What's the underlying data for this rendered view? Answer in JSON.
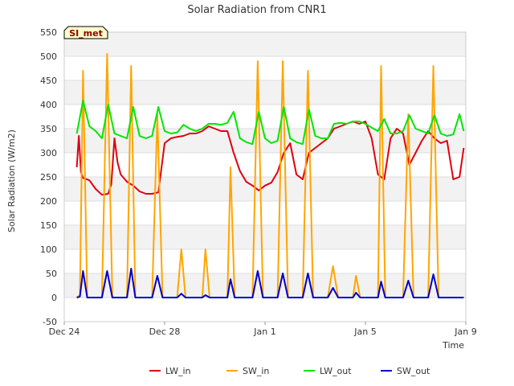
{
  "chart_data": {
    "type": "line",
    "title": "Solar Radiation from CNR1",
    "xlabel": "Time",
    "ylabel": "Solar Radiation (W/m2)",
    "badge": "SI_met",
    "ylim": [
      -50,
      550
    ],
    "yticks": [
      -50,
      0,
      50,
      100,
      150,
      200,
      250,
      300,
      350,
      400,
      450,
      500,
      550
    ],
    "xlim": [
      "2022-12-24",
      "2023-01-09"
    ],
    "xticks": [
      {
        "date": "2022-12-24",
        "label": "Dec 24"
      },
      {
        "date": "2022-12-28",
        "label": "Dec 28"
      },
      {
        "date": "2023-01-01",
        "label": "Jan 1"
      },
      {
        "date": "2023-01-05",
        "label": "Jan 5"
      },
      {
        "date": "2023-01-09",
        "label": "Jan 9"
      }
    ],
    "grid": true,
    "legend_position": "bottom",
    "series": [
      {
        "name": "LW_in",
        "color": "#e0000f",
        "x": [
          "2022-12-24 12:00",
          "2022-12-24 14:00",
          "2022-12-24 16:00",
          "2022-12-24 18:00",
          "2022-12-25 00:00",
          "2022-12-25 06:00",
          "2022-12-25 12:00",
          "2022-12-25 18:00",
          "2022-12-25 21:00",
          "2022-12-26 00:00",
          "2022-12-26 03:00",
          "2022-12-26 06:00",
          "2022-12-26 12:00",
          "2022-12-26 18:00",
          "2022-12-27 00:00",
          "2022-12-27 06:00",
          "2022-12-27 12:00",
          "2022-12-27 18:00",
          "2022-12-28 00:00",
          "2022-12-28 06:00",
          "2022-12-28 12:00",
          "2022-12-28 18:00",
          "2022-12-29 00:00",
          "2022-12-29 06:00",
          "2022-12-29 12:00",
          "2022-12-29 18:00",
          "2022-12-30 00:00",
          "2022-12-30 06:00",
          "2022-12-30 12:00",
          "2022-12-30 18:00",
          "2022-12-31 00:00",
          "2022-12-31 06:00",
          "2022-12-31 12:00",
          "2022-12-31 18:00",
          "2023-01-01 00:00",
          "2023-01-01 06:00",
          "2023-01-01 12:00",
          "2023-01-01 18:00",
          "2023-01-02 00:00",
          "2023-01-02 06:00",
          "2023-01-02 12:00",
          "2023-01-02 18:00",
          "2023-01-03 00:00",
          "2023-01-03 06:00",
          "2023-01-03 12:00",
          "2023-01-03 18:00",
          "2023-01-04 00:00",
          "2023-01-04 06:00",
          "2023-01-04 12:00",
          "2023-01-04 18:00",
          "2023-01-05 00:00",
          "2023-01-05 06:00",
          "2023-01-05 12:00",
          "2023-01-05 18:00",
          "2023-01-06 00:00",
          "2023-01-06 06:00",
          "2023-01-06 12:00",
          "2023-01-06 18:00",
          "2023-01-07 00:00",
          "2023-01-07 06:00",
          "2023-01-07 12:00",
          "2023-01-07 18:00",
          "2023-01-08 00:00",
          "2023-01-08 06:00",
          "2023-01-08 12:00",
          "2023-01-08 18:00",
          "2023-01-08 22:00"
        ],
        "y": [
          270,
          335,
          260,
          248,
          243,
          225,
          213,
          215,
          235,
          330,
          280,
          255,
          240,
          232,
          220,
          215,
          215,
          218,
          320,
          330,
          333,
          335,
          340,
          340,
          345,
          355,
          350,
          345,
          345,
          300,
          262,
          240,
          232,
          222,
          232,
          238,
          260,
          300,
          320,
          255,
          245,
          300,
          310,
          320,
          330,
          350,
          355,
          360,
          365,
          360,
          365,
          330,
          255,
          245,
          330,
          350,
          340,
          275,
          300,
          325,
          345,
          330,
          320,
          325,
          245,
          250,
          310
        ]
      },
      {
        "name": "SW_in",
        "color": "#ffa500",
        "x": [
          "2022-12-24 12:00",
          "2022-12-24 15:00",
          "2022-12-24 18:00",
          "2022-12-24 22:00",
          "2022-12-25 06:00",
          "2022-12-25 12:00",
          "2022-12-25 17:00",
          "2022-12-25 22:00",
          "2022-12-26 02:00",
          "2022-12-26 06:00",
          "2022-12-26 12:00",
          "2022-12-26 16:00",
          "2022-12-26 20:00",
          "2022-12-27 06:00",
          "2022-12-27 12:00",
          "2022-12-27 17:00",
          "2022-12-27 22:00",
          "2022-12-28 06:00",
          "2022-12-28 12:00",
          "2022-12-28 16:00",
          "2022-12-28 20:00",
          "2022-12-29 06:00",
          "2022-12-29 12:00",
          "2022-12-29 15:00",
          "2022-12-29 19:00",
          "2022-12-30 06:00",
          "2022-12-30 12:00",
          "2022-12-30 15:00",
          "2022-12-30 19:00",
          "2022-12-31 06:00",
          "2022-12-31 12:00",
          "2022-12-31 17:00",
          "2022-12-31 22:00",
          "2023-01-01 06:00",
          "2023-01-01 12:00",
          "2023-01-01 17:00",
          "2023-01-01 22:00",
          "2023-01-02 06:00",
          "2023-01-02 12:00",
          "2023-01-02 17:00",
          "2023-01-02 22:00",
          "2023-01-03 06:00",
          "2023-01-03 12:00",
          "2023-01-03 17:00",
          "2023-01-03 22:00",
          "2023-01-04 06:00",
          "2023-01-04 12:00",
          "2023-01-04 15:00",
          "2023-01-04 19:00",
          "2023-01-05 06:00",
          "2023-01-05 12:00",
          "2023-01-05 15:00",
          "2023-01-05 19:00",
          "2023-01-06 06:00",
          "2023-01-06 12:00",
          "2023-01-06 17:00",
          "2023-01-06 22:00",
          "2023-01-07 06:00",
          "2023-01-07 12:00",
          "2023-01-07 17:00",
          "2023-01-07 22:00",
          "2023-01-08 06:00",
          "2023-01-08 12:00",
          "2023-01-08 17:00",
          "2023-01-08 22:00"
        ],
        "y": [
          0,
          5,
          470,
          0,
          0,
          0,
          505,
          0,
          0,
          0,
          0,
          480,
          0,
          0,
          0,
          380,
          0,
          0,
          0,
          100,
          0,
          0,
          0,
          100,
          0,
          0,
          0,
          270,
          0,
          0,
          0,
          490,
          0,
          0,
          0,
          490,
          0,
          0,
          0,
          470,
          0,
          0,
          0,
          65,
          0,
          0,
          0,
          45,
          0,
          0,
          0,
          480,
          0,
          0,
          0,
          380,
          0,
          0,
          0,
          480,
          0,
          0,
          0,
          0,
          0
        ]
      },
      {
        "name": "LW_out",
        "color": "#00e600",
        "x": [
          "2022-12-24 12:00",
          "2022-12-24 18:00",
          "2022-12-25 00:00",
          "2022-12-25 06:00",
          "2022-12-25 12:00",
          "2022-12-25 18:00",
          "2022-12-26 00:00",
          "2022-12-26 06:00",
          "2022-12-26 12:00",
          "2022-12-26 18:00",
          "2022-12-27 00:00",
          "2022-12-27 06:00",
          "2022-12-27 12:00",
          "2022-12-27 18:00",
          "2022-12-28 00:00",
          "2022-12-28 06:00",
          "2022-12-28 12:00",
          "2022-12-28 18:00",
          "2022-12-29 00:00",
          "2022-12-29 06:00",
          "2022-12-29 12:00",
          "2022-12-29 18:00",
          "2022-12-30 00:00",
          "2022-12-30 06:00",
          "2022-12-30 12:00",
          "2022-12-30 18:00",
          "2022-12-31 00:00",
          "2022-12-31 06:00",
          "2022-12-31 12:00",
          "2022-12-31 18:00",
          "2023-01-01 00:00",
          "2023-01-01 06:00",
          "2023-01-01 12:00",
          "2023-01-01 18:00",
          "2023-01-02 00:00",
          "2023-01-02 06:00",
          "2023-01-02 12:00",
          "2023-01-02 18:00",
          "2023-01-03 00:00",
          "2023-01-03 06:00",
          "2023-01-03 12:00",
          "2023-01-03 18:00",
          "2023-01-04 00:00",
          "2023-01-04 06:00",
          "2023-01-04 12:00",
          "2023-01-04 18:00",
          "2023-01-05 00:00",
          "2023-01-05 06:00",
          "2023-01-05 12:00",
          "2023-01-05 18:00",
          "2023-01-06 00:00",
          "2023-01-06 06:00",
          "2023-01-06 12:00",
          "2023-01-06 18:00",
          "2023-01-07 00:00",
          "2023-01-07 06:00",
          "2023-01-07 12:00",
          "2023-01-07 18:00",
          "2023-01-08 00:00",
          "2023-01-08 06:00",
          "2023-01-08 12:00",
          "2023-01-08 18:00",
          "2023-01-08 22:00"
        ],
        "y": [
          340,
          408,
          355,
          345,
          330,
          400,
          340,
          335,
          330,
          395,
          335,
          330,
          335,
          395,
          345,
          340,
          342,
          358,
          350,
          345,
          350,
          360,
          360,
          358,
          362,
          385,
          330,
          322,
          318,
          385,
          330,
          320,
          325,
          395,
          330,
          322,
          318,
          390,
          335,
          330,
          330,
          360,
          362,
          360,
          365,
          365,
          360,
          352,
          345,
          370,
          340,
          340,
          345,
          378,
          350,
          345,
          340,
          378,
          340,
          335,
          338,
          380,
          345
        ]
      },
      {
        "name": "SW_out",
        "color": "#0000cc",
        "x": [
          "2022-12-24 12:00",
          "2022-12-24 15:00",
          "2022-12-24 18:00",
          "2022-12-24 22:00",
          "2022-12-25 06:00",
          "2022-12-25 12:00",
          "2022-12-25 17:00",
          "2022-12-25 22:00",
          "2022-12-26 02:00",
          "2022-12-26 06:00",
          "2022-12-26 12:00",
          "2022-12-26 16:00",
          "2022-12-26 20:00",
          "2022-12-27 06:00",
          "2022-12-27 12:00",
          "2022-12-27 17:00",
          "2022-12-27 22:00",
          "2022-12-28 06:00",
          "2022-12-28 12:00",
          "2022-12-28 16:00",
          "2022-12-28 20:00",
          "2022-12-29 06:00",
          "2022-12-29 12:00",
          "2022-12-29 15:00",
          "2022-12-29 19:00",
          "2022-12-30 06:00",
          "2022-12-30 12:00",
          "2022-12-30 15:00",
          "2022-12-30 19:00",
          "2022-12-31 06:00",
          "2022-12-31 12:00",
          "2022-12-31 17:00",
          "2022-12-31 22:00",
          "2023-01-01 06:00",
          "2023-01-01 12:00",
          "2023-01-01 17:00",
          "2023-01-01 22:00",
          "2023-01-02 06:00",
          "2023-01-02 12:00",
          "2023-01-02 17:00",
          "2023-01-02 22:00",
          "2023-01-03 06:00",
          "2023-01-03 12:00",
          "2023-01-03 17:00",
          "2023-01-03 22:00",
          "2023-01-04 06:00",
          "2023-01-04 12:00",
          "2023-01-04 15:00",
          "2023-01-04 19:00",
          "2023-01-05 06:00",
          "2023-01-05 12:00",
          "2023-01-05 15:00",
          "2023-01-05 19:00",
          "2023-01-06 06:00",
          "2023-01-06 12:00",
          "2023-01-06 17:00",
          "2023-01-06 22:00",
          "2023-01-07 06:00",
          "2023-01-07 12:00",
          "2023-01-07 17:00",
          "2023-01-07 22:00",
          "2023-01-08 06:00",
          "2023-01-08 12:00",
          "2023-01-08 17:00",
          "2023-01-08 22:00"
        ],
        "y": [
          0,
          2,
          55,
          0,
          0,
          0,
          55,
          0,
          0,
          0,
          0,
          60,
          0,
          0,
          0,
          45,
          0,
          0,
          0,
          8,
          0,
          0,
          0,
          5,
          0,
          0,
          0,
          38,
          0,
          0,
          0,
          55,
          0,
          0,
          0,
          50,
          0,
          0,
          0,
          50,
          0,
          0,
          0,
          20,
          0,
          0,
          0,
          10,
          0,
          0,
          0,
          33,
          0,
          0,
          0,
          35,
          0,
          0,
          0,
          48,
          0,
          0,
          0,
          0,
          0
        ]
      }
    ]
  }
}
